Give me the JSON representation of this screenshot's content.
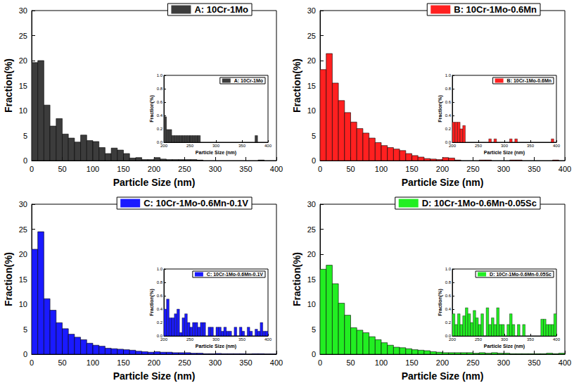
{
  "chart_data": [
    {
      "type": "histogram",
      "xlabel": "Particle Size (nm)",
      "ylabel": "Fraction(%)",
      "bins": [
        0,
        10,
        20,
        30,
        40,
        50,
        60,
        70,
        80,
        90,
        100,
        110,
        120,
        130,
        140,
        150,
        160,
        170,
        180,
        190,
        200,
        210,
        220,
        230,
        240,
        250,
        260,
        270,
        280,
        290,
        300,
        310,
        320,
        330,
        340,
        350,
        360,
        370,
        380,
        390,
        400
      ],
      "series": [
        {
          "name": "A: 10Cr-1Mo",
          "color": "#3c3c3c",
          "values": [
            19.6,
            20.0,
            11.1,
            6.9,
            8.4,
            5.3,
            4.5,
            3.7,
            5.1,
            4.0,
            3.8,
            2.6,
            1.4,
            2.5,
            2.1,
            1.4,
            0.5,
            0.6,
            0.2,
            0.2,
            0.6,
            0.3,
            0.2,
            0.2,
            0.2,
            0.2,
            0.2,
            0.1,
            0,
            0,
            0,
            0,
            0,
            0,
            0,
            0,
            0,
            0.1,
            0,
            0
          ]
        }
      ],
      "xlim": [
        0,
        400
      ],
      "xticks": [
        0,
        50,
        100,
        150,
        200,
        250,
        300,
        350,
        400
      ],
      "ylim": [
        0,
        30
      ],
      "yticks": [
        0,
        5,
        10,
        15,
        20,
        25,
        30
      ],
      "grid": false,
      "legend": "upper right"
    },
    {
      "type": "histogram",
      "xlabel": "Particle Size (nm)",
      "ylabel": "Fraction(%)",
      "bins": [
        200,
        205,
        210,
        215,
        220,
        225,
        230,
        235,
        240,
        245,
        250,
        255,
        260,
        265,
        270,
        275,
        280,
        285,
        290,
        295,
        300,
        305,
        310,
        315,
        320,
        325,
        330,
        335,
        340,
        345,
        350,
        355,
        360,
        365,
        370,
        375,
        380,
        385,
        390,
        395,
        400
      ],
      "series": [
        {
          "name": "A: 10Cr-1Mo",
          "color": "#3c3c3c",
          "values": [
            0.38,
            0.19,
            0.19,
            0.1,
            0.1,
            0.1,
            0.1,
            0.1,
            0.1,
            0.1,
            0.1,
            0.1,
            0.1,
            0.1,
            0,
            0,
            0,
            0,
            0,
            0,
            0,
            0,
            0,
            0,
            0,
            0,
            0,
            0,
            0,
            0,
            0,
            0,
            0,
            0,
            0,
            0.1,
            0,
            0,
            0,
            0
          ]
        }
      ],
      "xlim": [
        200,
        400
      ],
      "xticks": [
        200,
        250,
        300,
        350,
        400
      ],
      "ylim": [
        0,
        1
      ],
      "yticks": [
        {
          "value": 0,
          "label": "0.0"
        },
        {
          "value": 0.2,
          "label": "0.2"
        },
        {
          "value": 0.4,
          "label": "0.4"
        },
        {
          "value": 0.6,
          "label": "0.6"
        },
        {
          "value": 0.8,
          "label": "0.8"
        },
        {
          "value": 1,
          "label": "1.0"
        }
      ],
      "grid": false,
      "legend": "upper right"
    },
    {
      "type": "histogram",
      "xlabel": "Particle Size (nm)",
      "ylabel": "Fraction(%)",
      "bins": [
        0,
        10,
        20,
        30,
        40,
        50,
        60,
        70,
        80,
        90,
        100,
        110,
        120,
        130,
        140,
        150,
        160,
        170,
        180,
        190,
        200,
        210,
        220,
        230,
        240,
        250,
        260,
        270,
        280,
        290,
        300,
        310,
        320,
        330,
        340,
        350,
        360,
        370,
        380,
        390,
        400
      ],
      "series": [
        {
          "name": "B: 10Cr-1Mo-0.6Mn",
          "color": "#ff2020",
          "values": [
            18.2,
            21.4,
            15.5,
            12.0,
            9.6,
            7.7,
            6.4,
            5.5,
            4.5,
            3.6,
            3.0,
            2.6,
            2.3,
            2.0,
            1.4,
            1.0,
            0.7,
            0.4,
            0.3,
            0.2,
            0.6,
            0.5,
            0.1,
            0,
            0,
            0,
            0.1,
            0.1,
            0,
            0,
            0,
            0.1,
            0.1,
            0,
            0,
            0,
            0,
            0,
            0.1,
            0
          ]
        }
      ],
      "xlim": [
        0,
        400
      ],
      "xticks": [
        0,
        50,
        100,
        150,
        200,
        250,
        300,
        350,
        400
      ],
      "ylim": [
        0,
        30
      ],
      "yticks": [
        0,
        5,
        10,
        15,
        20,
        25,
        30
      ],
      "grid": false,
      "legend": "upper right"
    },
    {
      "type": "histogram",
      "xlabel": "Particle Size (nm)",
      "ylabel": "Fraction(%)",
      "bins": [
        200,
        205,
        210,
        215,
        220,
        225,
        230,
        235,
        240,
        245,
        250,
        255,
        260,
        265,
        270,
        275,
        280,
        285,
        290,
        295,
        300,
        305,
        310,
        315,
        320,
        325,
        330,
        335,
        340,
        345,
        350,
        355,
        360,
        365,
        370,
        375,
        380,
        385,
        390,
        395,
        400
      ],
      "series": [
        {
          "name": "B: 10Cr-1Mo-0.6Mn",
          "color": "#ff2020",
          "values": [
            0.3,
            0.3,
            0.3,
            0.2,
            0.25,
            0,
            0,
            0,
            0,
            0,
            0,
            0,
            0,
            0,
            0.05,
            0,
            0.05,
            0,
            0,
            0,
            0,
            0,
            0.05,
            0,
            0.05,
            0,
            0,
            0,
            0,
            0,
            0,
            0,
            0,
            0,
            0,
            0,
            0,
            0,
            0.05,
            0
          ]
        }
      ],
      "xlim": [
        200,
        400
      ],
      "xticks": [
        200,
        250,
        300,
        350,
        400
      ],
      "ylim": [
        0,
        1
      ],
      "yticks": [
        {
          "value": 0,
          "label": "0.0"
        },
        {
          "value": 0.2,
          "label": "0.2"
        },
        {
          "value": 0.4,
          "label": "0.4"
        },
        {
          "value": 0.6,
          "label": "0.6"
        },
        {
          "value": 0.8,
          "label": "0.8"
        },
        {
          "value": 1,
          "label": "1.0"
        }
      ],
      "grid": false,
      "legend": "upper right"
    },
    {
      "type": "histogram",
      "xlabel": "Particle Size (nm)",
      "ylabel": "Fraction(%)",
      "bins": [
        0,
        10,
        20,
        30,
        40,
        50,
        60,
        70,
        80,
        90,
        100,
        110,
        120,
        130,
        140,
        150,
        160,
        170,
        180,
        190,
        200,
        210,
        220,
        230,
        240,
        250,
        260,
        270,
        280,
        290,
        300,
        310,
        320,
        330,
        340,
        350,
        360,
        370,
        380,
        390,
        400
      ],
      "series": [
        {
          "name": "C: 10Cr-1Mo-0.6Mn-0.1V",
          "color": "#1a1aff",
          "values": [
            21.0,
            24.5,
            11.1,
            8.8,
            6.3,
            5.1,
            4.0,
            3.4,
            2.9,
            2.2,
            1.8,
            1.6,
            1.2,
            1.1,
            1.0,
            0.9,
            0.8,
            0.6,
            0.5,
            0.4,
            0.5,
            0.4,
            0.4,
            0.3,
            0.3,
            0.3,
            0.2,
            0.2,
            0.1,
            0.1,
            0.15,
            0.1,
            0.1,
            0.1,
            0.1,
            0.05,
            0.1,
            0.1,
            0.05,
            0.05
          ]
        }
      ],
      "xlim": [
        0,
        400
      ],
      "xticks": [
        0,
        50,
        100,
        150,
        200,
        250,
        300,
        350,
        400
      ],
      "ylim": [
        0,
        30
      ],
      "yticks": [
        0,
        5,
        10,
        15,
        20,
        25,
        30
      ],
      "grid": false,
      "legend": "upper right"
    },
    {
      "type": "histogram",
      "xlabel": "Particle Size (nm)",
      "ylabel": "Fraction(%)",
      "bins": [
        200,
        205,
        210,
        215,
        220,
        225,
        230,
        235,
        240,
        245,
        250,
        255,
        260,
        265,
        270,
        275,
        280,
        285,
        290,
        295,
        300,
        305,
        310,
        315,
        320,
        325,
        330,
        335,
        340,
        345,
        350,
        355,
        360,
        365,
        370,
        375,
        380,
        385,
        390,
        395,
        400
      ],
      "series": [
        {
          "name": "C: 10Cr-1Mo-0.6Mn-0.1V",
          "color": "#1a1aff",
          "values": [
            0.4,
            0.55,
            0.27,
            0.27,
            0.33,
            0.4,
            0.05,
            0.27,
            0.33,
            0.2,
            0.13,
            0.2,
            0.2,
            0.13,
            0.2,
            0.2,
            0,
            0.13,
            0.13,
            0,
            0.13,
            0.13,
            0.07,
            0.13,
            0.07,
            0.07,
            0,
            0.13,
            0,
            0.13,
            0.07,
            0,
            0.13,
            0.07,
            0,
            0.1,
            0.07,
            0.2,
            0.07,
            0.07
          ]
        }
      ],
      "xlim": [
        200,
        400
      ],
      "xticks": [
        200,
        250,
        300,
        350,
        400
      ],
      "ylim": [
        0,
        1
      ],
      "yticks": [
        {
          "value": 0,
          "label": "0.0"
        },
        {
          "value": 0.2,
          "label": "0.2"
        },
        {
          "value": 0.4,
          "label": "0.4"
        },
        {
          "value": 0.6,
          "label": "0.6"
        },
        {
          "value": 0.8,
          "label": "0.8"
        },
        {
          "value": 1,
          "label": "1.0"
        }
      ],
      "grid": false,
      "legend": "upper right"
    },
    {
      "type": "histogram",
      "xlabel": "Particle Size (nm)",
      "ylabel": "Fraction(%)",
      "bins": [
        0,
        10,
        20,
        30,
        40,
        50,
        60,
        70,
        80,
        90,
        100,
        110,
        120,
        130,
        140,
        150,
        160,
        170,
        180,
        190,
        200,
        210,
        220,
        230,
        240,
        250,
        260,
        270,
        280,
        290,
        300,
        310,
        320,
        330,
        340,
        350,
        360,
        370,
        380,
        390,
        400
      ],
      "series": [
        {
          "name": "D: 10Cr-1Mo-0.6Mn-0.05Sc",
          "color": "#22ee22",
          "values": [
            17.0,
            17.8,
            14.1,
            10.2,
            7.8,
            5.3,
            4.8,
            4.3,
            3.5,
            2.9,
            2.3,
            1.8,
            1.4,
            1.3,
            1.1,
            0.9,
            0.8,
            0.7,
            0.5,
            0.4,
            0.3,
            0.3,
            0.3,
            0.3,
            0.3,
            0.2,
            0.3,
            0.2,
            0.3,
            0.2,
            0.2,
            0.1,
            0.1,
            0.1,
            0.1,
            0.1,
            0.1,
            0.2,
            0.1,
            0.2
          ]
        }
      ],
      "xlim": [
        0,
        400
      ],
      "xticks": [
        0,
        50,
        100,
        150,
        200,
        250,
        300,
        350,
        400
      ],
      "ylim": [
        0,
        30
      ],
      "yticks": [
        0,
        5,
        10,
        15,
        20,
        25,
        30
      ],
      "grid": false,
      "legend": "upper right"
    },
    {
      "type": "histogram",
      "xlabel": "Particle Size (nm)",
      "ylabel": "Fraction(%)",
      "bins": [
        200,
        205,
        210,
        215,
        220,
        225,
        230,
        235,
        240,
        245,
        250,
        255,
        260,
        265,
        270,
        275,
        280,
        285,
        290,
        295,
        300,
        305,
        310,
        315,
        320,
        325,
        330,
        335,
        340,
        345,
        350,
        355,
        360,
        365,
        370,
        375,
        380,
        385,
        390,
        395,
        400
      ],
      "series": [
        {
          "name": "D: 10Cr-1Mo-0.6Mn-0.05Sc",
          "color": "#22ee22",
          "values": [
            0.33,
            0.17,
            0.33,
            0.17,
            0.3,
            0.42,
            0.33,
            0.2,
            0.38,
            0.27,
            0.17,
            0.33,
            0,
            0.42,
            0.17,
            0.27,
            0.17,
            0.42,
            0.17,
            0.17,
            0,
            0.17,
            0.33,
            0.17,
            0,
            0.17,
            0,
            0.17,
            0,
            0,
            0,
            0,
            0,
            0,
            0.25,
            0.25,
            0.17,
            0.17,
            0.17,
            0.33
          ]
        }
      ],
      "xlim": [
        200,
        400
      ],
      "xticks": [
        200,
        250,
        300,
        350,
        400
      ],
      "ylim": [
        0,
        1
      ],
      "yticks": [
        {
          "value": 0,
          "label": "0.0"
        },
        {
          "value": 0.2,
          "label": "0.2"
        },
        {
          "value": 0.4,
          "label": "0.4"
        },
        {
          "value": 0.6,
          "label": "0.6"
        },
        {
          "value": 0.8,
          "label": "0.8"
        },
        {
          "value": 1,
          "label": "1.0"
        }
      ],
      "grid": false,
      "legend": "upper right"
    }
  ]
}
